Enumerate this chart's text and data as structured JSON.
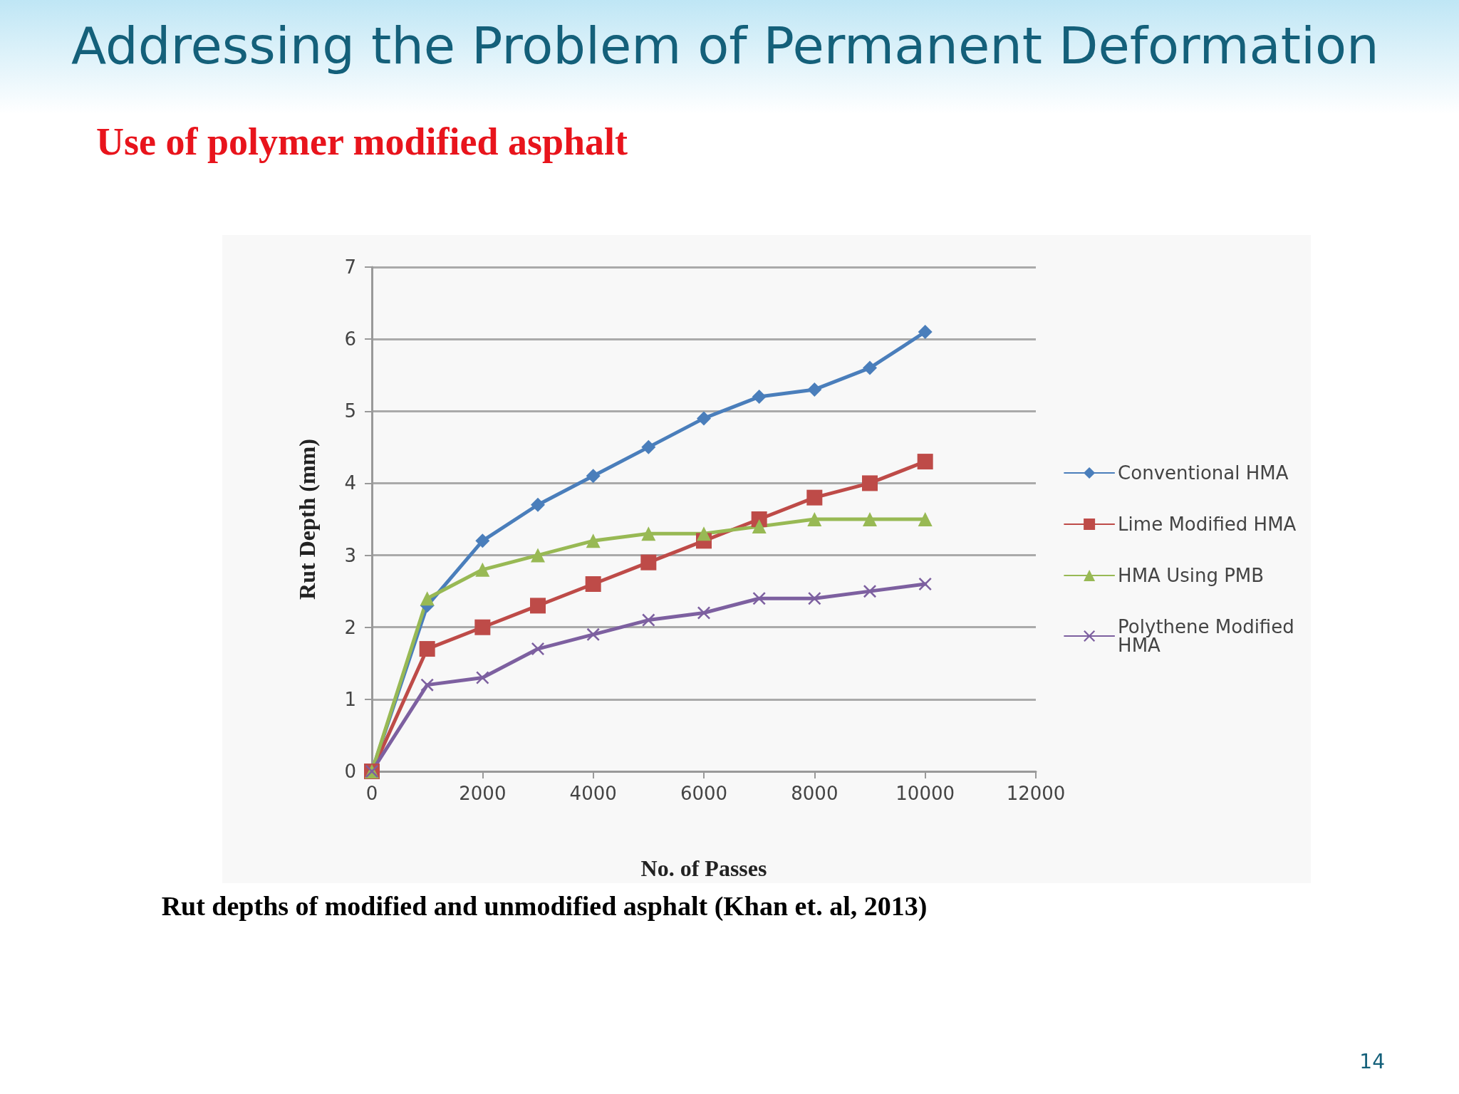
{
  "chart_data": {
    "type": "line",
    "title": "Addressing the Problem of Permanent Deformation",
    "subtitle": "Use of polymer modified asphalt",
    "xlabel": "No. of Passes",
    "ylabel": "Rut Depth (mm)",
    "x": [
      0,
      1000,
      2000,
      3000,
      4000,
      5000,
      6000,
      7000,
      8000,
      9000,
      10000
    ],
    "series": [
      {
        "name": "Conventional HMA",
        "color": "#4a7ebb",
        "marker": "diamond",
        "values": [
          0,
          2.3,
          3.2,
          3.7,
          4.1,
          4.5,
          4.9,
          5.2,
          5.3,
          5.6,
          6.1
        ]
      },
      {
        "name": "Lime Modified HMA",
        "color": "#be4b48",
        "marker": "square",
        "values": [
          0,
          1.7,
          2.0,
          2.3,
          2.6,
          2.9,
          3.2,
          3.5,
          3.8,
          4.0,
          4.3
        ]
      },
      {
        "name": "HMA Using PMB",
        "color": "#98b954",
        "marker": "triangle",
        "values": [
          0,
          2.4,
          2.8,
          3.0,
          3.2,
          3.3,
          3.3,
          3.4,
          3.5,
          3.5,
          3.5
        ]
      },
      {
        "name": "Polythene Modified HMA",
        "color": "#7d60a0",
        "marker": "cross",
        "values": [
          0,
          1.2,
          1.3,
          1.7,
          1.9,
          2.1,
          2.2,
          2.4,
          2.4,
          2.5,
          2.6
        ]
      }
    ],
    "xlim": [
      0,
      12000
    ],
    "xticks": [
      0,
      2000,
      4000,
      6000,
      8000,
      10000,
      12000
    ],
    "ylim": [
      0,
      7
    ],
    "yticks": [
      0,
      1,
      2,
      3,
      4,
      5,
      6,
      7
    ],
    "grid": "y",
    "legend": "right",
    "line_style": "solid",
    "annotations": [
      "Rut depths of modified and unmodified asphalt (Khan et. al, 2013)",
      "14"
    ]
  }
}
